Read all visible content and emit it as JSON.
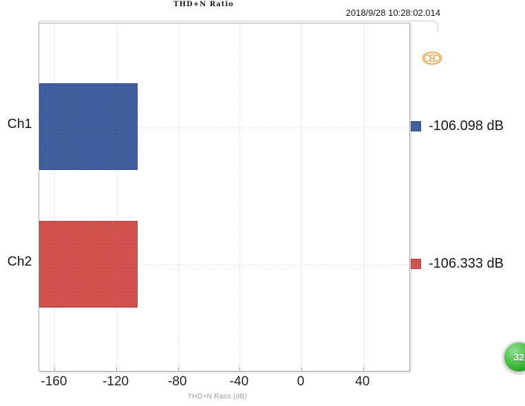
{
  "header": {
    "title": "THD+N Ratio",
    "timestamp": "2018/9/28 10:28:02.014"
  },
  "chart_data": {
    "type": "bar",
    "orientation": "horizontal",
    "title": "THD+N Ratio",
    "categories": [
      "Ch1",
      "Ch2"
    ],
    "values": [
      -106.098,
      -106.333
    ],
    "unit": "dB",
    "legend_entries": [
      "-106.098 dB",
      "-106.333 dB"
    ],
    "legend_position": "right",
    "series_colors": [
      "#41609F",
      "#D4534F"
    ],
    "series_border_colors": [
      "#2E4B86",
      "#BC413D"
    ],
    "xlabel": "THD+N Ratio (dB)",
    "xlim": [
      -170,
      70
    ],
    "xticks": [
      -160,
      -120,
      -80,
      -40,
      0,
      40
    ],
    "bar_start": -170,
    "grid": "vertical-dotted"
  },
  "overlay": {
    "logo": "orange-oval-emblem-icon",
    "logo_color": "#F0A23C",
    "badge_text": "32",
    "badge_color": "#3CB53C"
  }
}
